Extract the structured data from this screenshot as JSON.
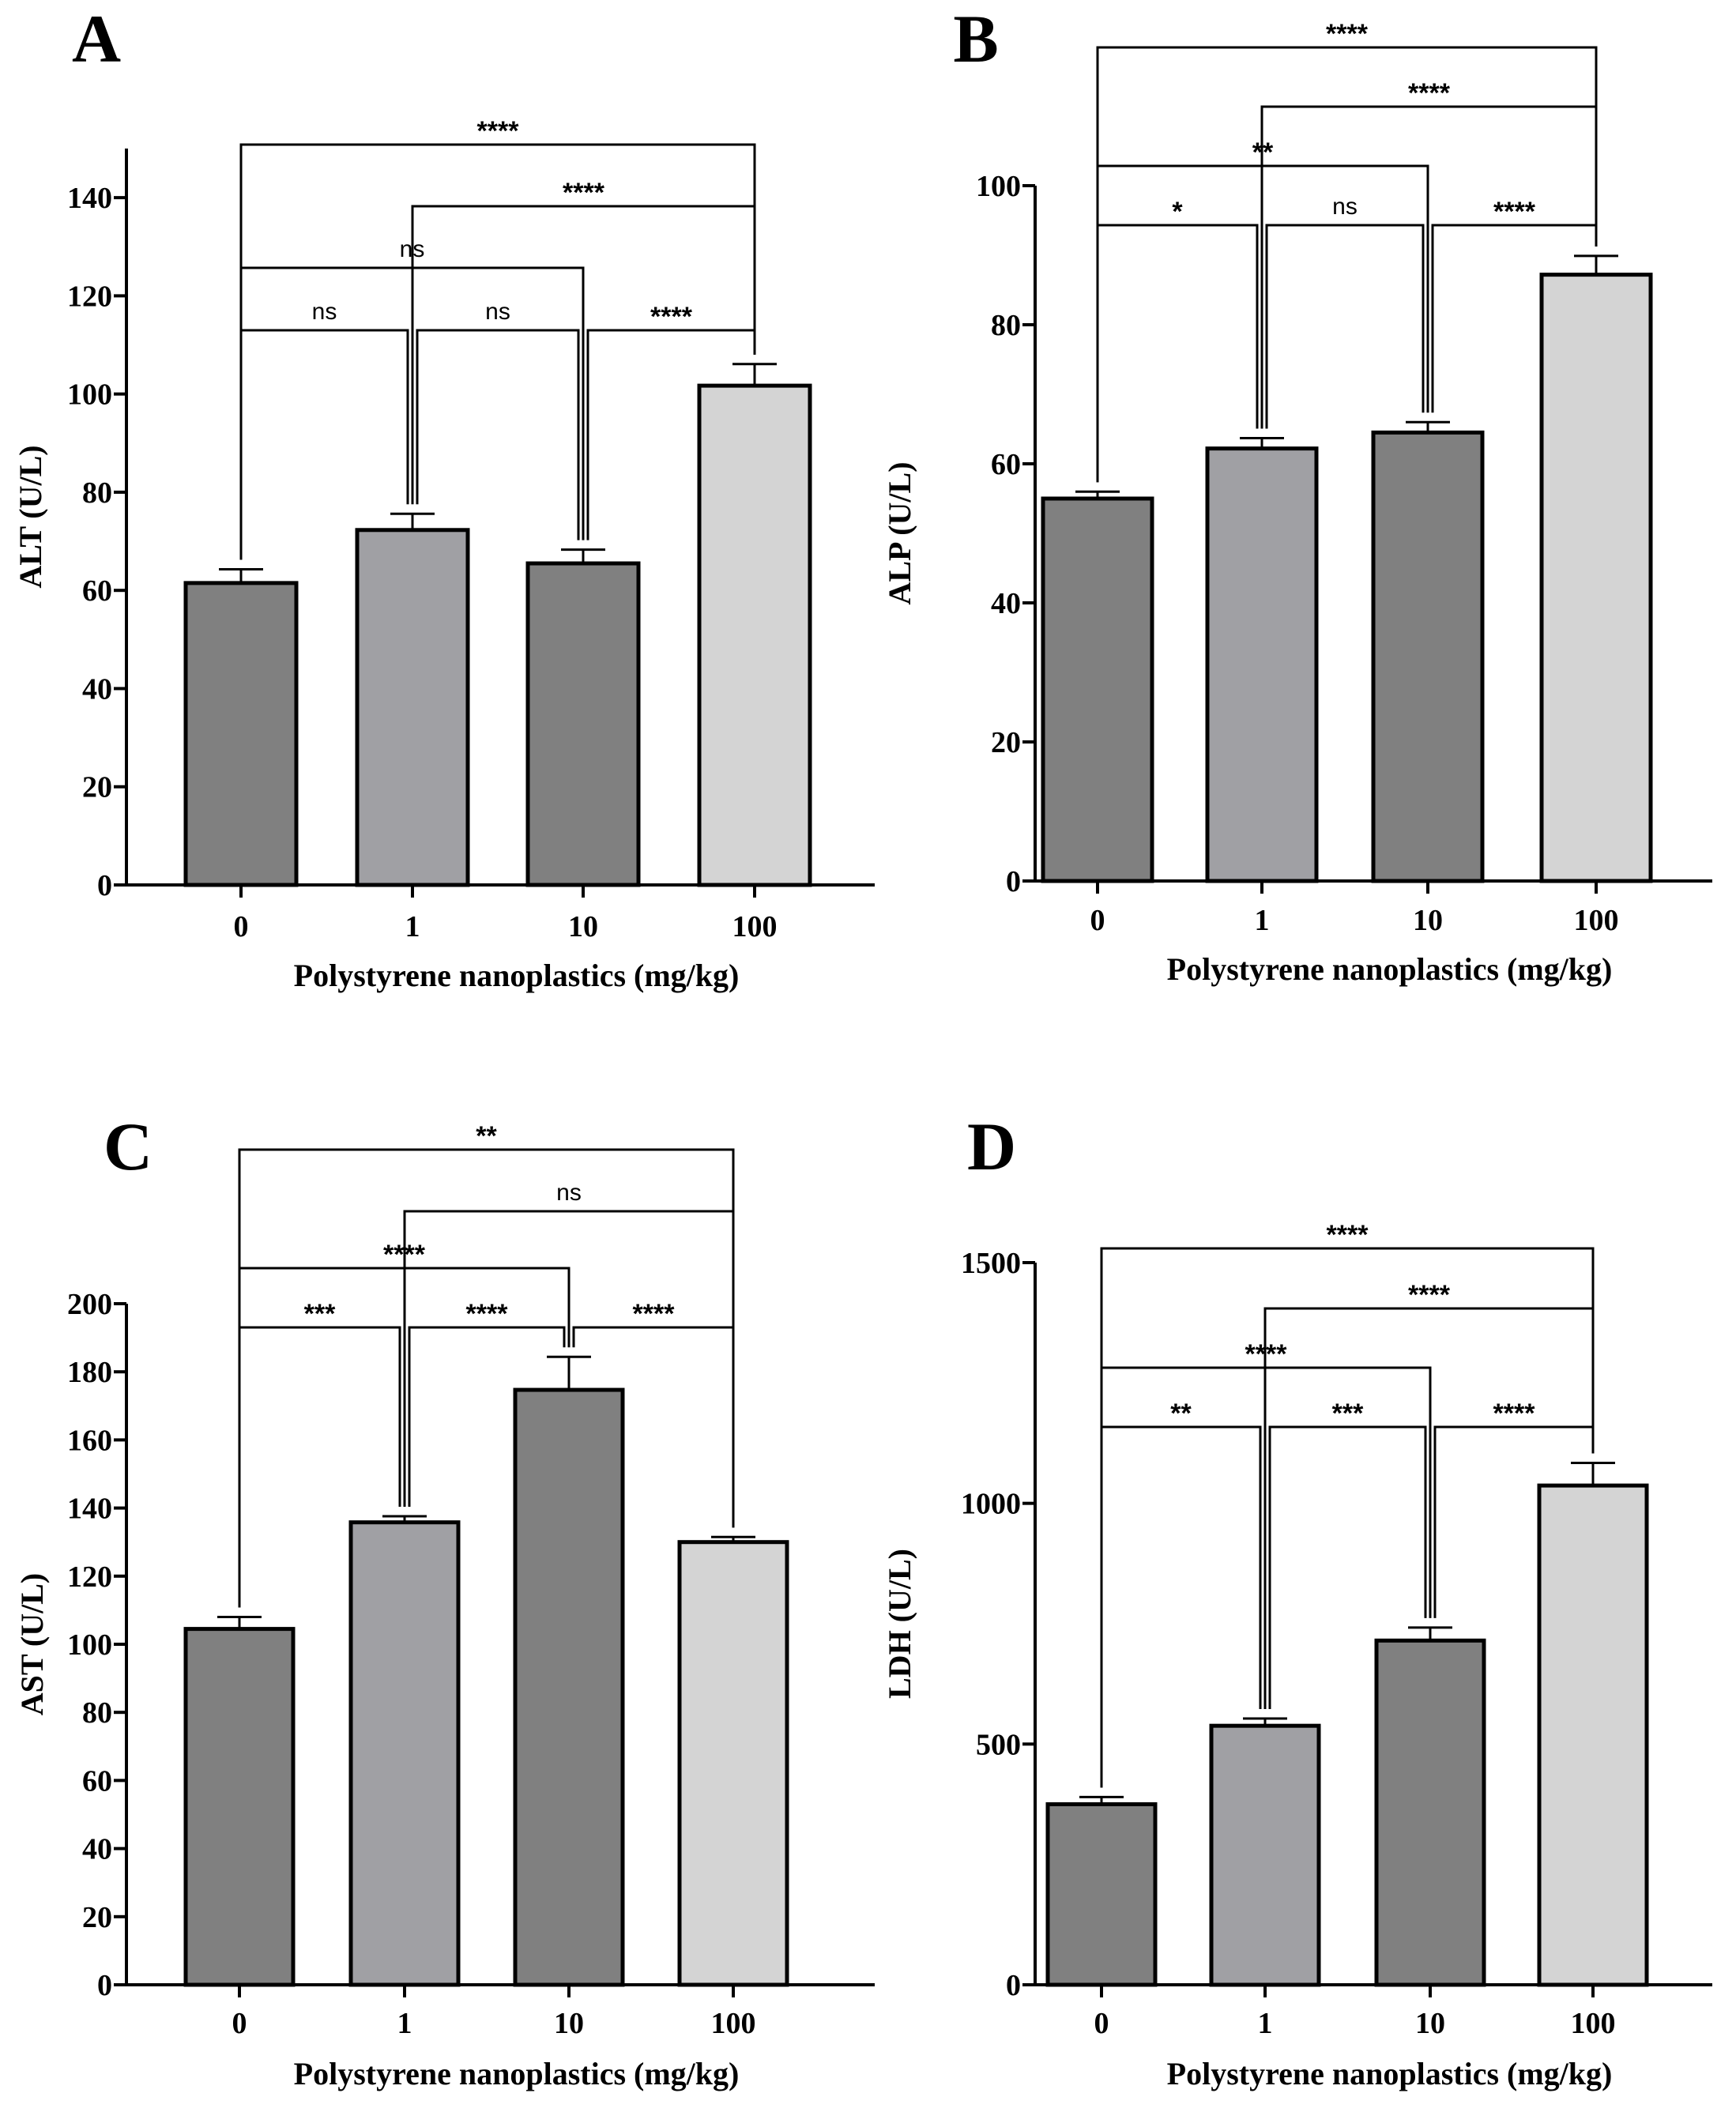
{
  "chart_data": [
    {
      "type": "bar",
      "panel": "A",
      "title": "",
      "xlabel": "Polystyrene nanoplastics (mg/kg)",
      "ylabel": "ALT (U/L)",
      "categories": [
        "0",
        "1",
        "10",
        "100"
      ],
      "values": [
        61.5,
        72.3,
        65.5,
        101.7
      ],
      "errors": [
        2.8,
        3.3,
        2.8,
        4.4
      ],
      "colors": [
        "#808080",
        "#a0a0a4",
        "#808080",
        "#d4d4d4"
      ],
      "ylim": [
        0,
        150
      ],
      "yticks": [
        0,
        20,
        40,
        60,
        80,
        100,
        120,
        140
      ],
      "comparisons": [
        {
          "from": 0,
          "to": 1,
          "label": "ns",
          "level": 0
        },
        {
          "from": 1,
          "to": 2,
          "label": "ns",
          "level": 0
        },
        {
          "from": 2,
          "to": 3,
          "label": "****",
          "level": 0
        },
        {
          "from": 0,
          "to": 2,
          "label": "ns",
          "level": 1
        },
        {
          "from": 1,
          "to": 3,
          "label": "****",
          "level": 2
        },
        {
          "from": 0,
          "to": 3,
          "label": "****",
          "level": 3
        }
      ]
    },
    {
      "type": "bar",
      "panel": "B",
      "title": "",
      "xlabel": "Polystyrene nanoplastics (mg/kg)",
      "ylabel": "ALP (U/L)",
      "categories": [
        "0",
        "1",
        "10",
        "100"
      ],
      "values": [
        55.0,
        62.2,
        64.5,
        87.2
      ],
      "errors": [
        1.0,
        1.5,
        1.5,
        2.7
      ],
      "colors": [
        "#808080",
        "#a0a0a4",
        "#808080",
        "#d4d4d4"
      ],
      "ylim": [
        0,
        100
      ],
      "yticks": [
        0,
        20,
        40,
        60,
        80,
        100
      ],
      "comparisons": [
        {
          "from": 0,
          "to": 1,
          "label": "*",
          "level": 0
        },
        {
          "from": 1,
          "to": 2,
          "label": "ns",
          "level": 0
        },
        {
          "from": 2,
          "to": 3,
          "label": "****",
          "level": 0
        },
        {
          "from": 0,
          "to": 2,
          "label": "**",
          "level": 1
        },
        {
          "from": 1,
          "to": 3,
          "label": "****",
          "level": 2
        },
        {
          "from": 0,
          "to": 3,
          "label": "****",
          "level": 3
        }
      ]
    },
    {
      "type": "bar",
      "panel": "C",
      "title": "",
      "xlabel": "Polystyrene nanoplastics (mg/kg)",
      "ylabel": "AST (U/L)",
      "categories": [
        "0",
        "1",
        "10",
        "100"
      ],
      "values": [
        104.5,
        135.8,
        174.7,
        130.0
      ],
      "errors": [
        3.5,
        1.8,
        9.7,
        1.5
      ],
      "colors": [
        "#808080",
        "#a0a0a4",
        "#808080",
        "#d4d4d4"
      ],
      "ylim": [
        0,
        200
      ],
      "yticks": [
        0,
        20,
        40,
        60,
        80,
        100,
        120,
        140,
        160,
        180,
        200
      ],
      "comparisons": [
        {
          "from": 0,
          "to": 1,
          "label": "***",
          "level": 0
        },
        {
          "from": 1,
          "to": 2,
          "label": "****",
          "level": 0
        },
        {
          "from": 2,
          "to": 3,
          "label": "****",
          "level": 0
        },
        {
          "from": 0,
          "to": 2,
          "label": "****",
          "level": 1
        },
        {
          "from": 1,
          "to": 3,
          "label": "ns",
          "level": 2
        },
        {
          "from": 0,
          "to": 3,
          "label": "**",
          "level": 3
        }
      ]
    },
    {
      "type": "bar",
      "panel": "D",
      "title": "",
      "xlabel": "Polystyrene nanoplastics (mg/kg)",
      "ylabel": "LDH (U/L)",
      "categories": [
        "0",
        "1",
        "10",
        "100"
      ],
      "values": [
        375,
        538,
        715,
        1037
      ],
      "errors": [
        15,
        15,
        27,
        47
      ],
      "colors": [
        "#808080",
        "#a0a0a4",
        "#808080",
        "#d4d4d4"
      ],
      "ylim": [
        0,
        1500
      ],
      "yticks": [
        0,
        500,
        1000,
        1500
      ],
      "comparisons": [
        {
          "from": 0,
          "to": 1,
          "label": "**",
          "level": 0
        },
        {
          "from": 1,
          "to": 2,
          "label": "***",
          "level": 0
        },
        {
          "from": 2,
          "to": 3,
          "label": "****",
          "level": 0
        },
        {
          "from": 0,
          "to": 2,
          "label": "****",
          "level": 1
        },
        {
          "from": 1,
          "to": 3,
          "label": "****",
          "level": 2
        },
        {
          "from": 0,
          "to": 3,
          "label": "****",
          "level": 3
        }
      ]
    }
  ]
}
